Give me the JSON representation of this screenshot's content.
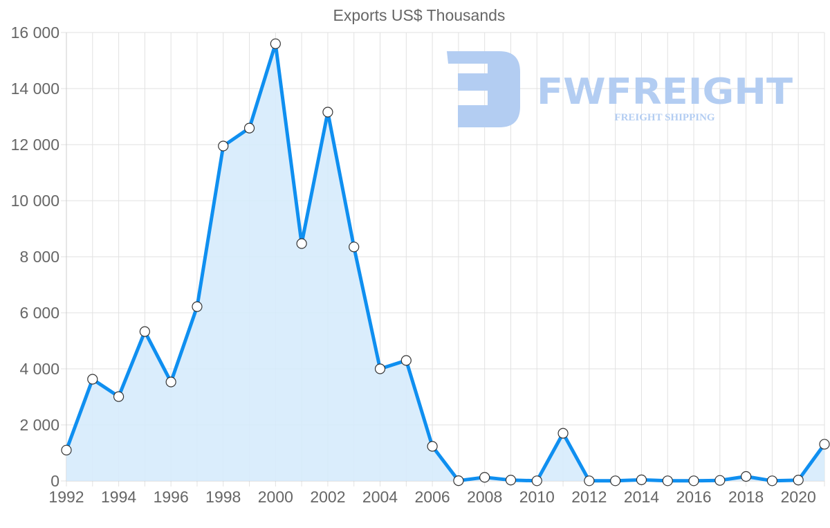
{
  "chart_data": {
    "type": "line",
    "title": "Exports US$ Thousands",
    "xlabel": "",
    "ylabel": "",
    "x": [
      1992,
      1993,
      1994,
      1995,
      1996,
      1997,
      1998,
      1999,
      2000,
      2001,
      2002,
      2003,
      2004,
      2005,
      2006,
      2007,
      2008,
      2009,
      2010,
      2011,
      2012,
      2013,
      2014,
      2015,
      2016,
      2017,
      2018,
      2019,
      2020,
      2021
    ],
    "series": [
      {
        "name": "Exports US$ Thousands",
        "values": [
          1100,
          3630,
          3010,
          5330,
          3530,
          6220,
          11950,
          12590,
          15600,
          8470,
          13160,
          8350,
          4000,
          4300,
          1235,
          10,
          130,
          30,
          5,
          1700,
          5,
          5,
          40,
          5,
          5,
          20,
          160,
          5,
          30,
          1310
        ],
        "color": "#0f8ff0",
        "fill": "#d6ebfc",
        "marker": "circle-white"
      }
    ],
    "ylim": [
      0,
      16000
    ],
    "yticks": [
      0,
      2000,
      4000,
      6000,
      8000,
      10000,
      12000,
      14000,
      16000
    ],
    "ytick_labels": [
      "0",
      "2 000",
      "4 000",
      "6 000",
      "8 000",
      "10 000",
      "12 000",
      "14 000",
      "16 000"
    ],
    "xticks": [
      1992,
      1994,
      1996,
      1998,
      2000,
      2002,
      2004,
      2006,
      2008,
      2010,
      2012,
      2014,
      2016,
      2018,
      2020
    ],
    "xtick_labels": [
      "1992",
      "1994",
      "1996",
      "1998",
      "2000",
      "2002",
      "2004",
      "2006",
      "2008",
      "2010",
      "2012",
      "2014",
      "2016",
      "2018",
      "2020"
    ],
    "grid": true,
    "legend": "none"
  },
  "watermark": {
    "brand": "FWFREIGHT",
    "tagline": "FREIGHT SHIPPING",
    "color": "#b3cdf2"
  }
}
